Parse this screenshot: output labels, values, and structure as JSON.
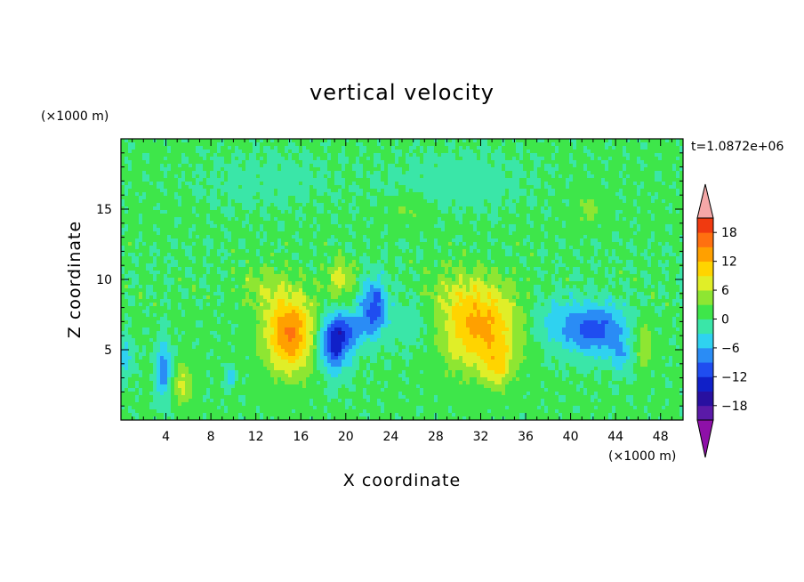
{
  "chart_data": {
    "type": "heatmap",
    "title": "vertical velocity",
    "xlabel": "X coordinate",
    "ylabel": "Z coordinate",
    "x_unit": "(×1000 m)",
    "y_unit": "(×1000 m)",
    "time_label": "t=1.0872e+06",
    "xlim": [
      0,
      50
    ],
    "ylim": [
      0,
      20
    ],
    "x_ticks": [
      4,
      8,
      12,
      16,
      20,
      24,
      28,
      32,
      36,
      40,
      44,
      48
    ],
    "y_ticks": [
      5,
      10,
      15
    ],
    "colorbar": {
      "levels": [
        -21,
        -18,
        -15,
        -12,
        -9,
        -6,
        -3,
        0,
        3,
        6,
        9,
        12,
        15,
        18,
        21
      ],
      "tick_values": [
        -18,
        -12,
        -6,
        0,
        6,
        12,
        18
      ],
      "tick_labels": [
        "−18",
        "−12",
        "−6",
        "0",
        "6",
        "12",
        "18"
      ],
      "colors": [
        "#5a1aa8",
        "#2810a0",
        "#1020c8",
        "#1f4df0",
        "#2a8cf5",
        "#2fd2f0",
        "#3ae6a8",
        "#3ee64a",
        "#8ee632",
        "#e0ee28",
        "#ffd400",
        "#ffa000",
        "#ff7010",
        "#f03a10",
        "#e01010"
      ],
      "under_color": "#8e10a8",
      "over_color": "#f5a8a8"
    },
    "field": {
      "background": 0.5,
      "features": [
        {
          "x": 15,
          "z": 6.2,
          "sx": 2.2,
          "sz": 2.8,
          "amp": 15
        },
        {
          "x": 12.5,
          "z": 9.5,
          "sx": 2.0,
          "sz": 1.5,
          "amp": 4
        },
        {
          "x": 32,
          "z": 6.5,
          "sx": 3.5,
          "sz": 3.0,
          "amp": 12
        },
        {
          "x": 33.5,
          "z": 3.8,
          "sx": 1.2,
          "sz": 1.5,
          "amp": 6
        },
        {
          "x": 30,
          "z": 9,
          "sx": 3.5,
          "sz": 2.0,
          "amp": 3
        },
        {
          "x": 19.5,
          "z": 10,
          "sx": 1.2,
          "sz": 1.4,
          "amp": 7
        },
        {
          "x": 46.5,
          "z": 5.5,
          "sx": 0.8,
          "sz": 1.8,
          "amp": 6
        },
        {
          "x": 5.5,
          "z": 2.5,
          "sx": 1.0,
          "sz": 1.5,
          "amp": 6
        },
        {
          "x": 25.5,
          "z": 15,
          "sx": 1.5,
          "sz": 1.0,
          "amp": 3
        },
        {
          "x": 41.5,
          "z": 15,
          "sx": 1.2,
          "sz": 1.2,
          "amp": 4
        },
        {
          "x": 19,
          "z": 5.5,
          "sx": 1.4,
          "sz": 2.0,
          "amp": -14
        },
        {
          "x": 22.5,
          "z": 8,
          "sx": 1.2,
          "sz": 2.0,
          "amp": -11
        },
        {
          "x": 20.5,
          "z": 6.5,
          "sx": 1.5,
          "sz": 1.2,
          "amp": -6
        },
        {
          "x": 42,
          "z": 6.5,
          "sx": 3.0,
          "sz": 1.8,
          "amp": -11
        },
        {
          "x": 44.5,
          "z": 4.5,
          "sx": 1.0,
          "sz": 1.2,
          "amp": -5
        },
        {
          "x": 3.8,
          "z": 3.5,
          "sx": 0.7,
          "sz": 2.0,
          "amp": -9
        },
        {
          "x": 9.8,
          "z": 3.0,
          "sx": 0.4,
          "sz": 0.6,
          "amp": -7
        },
        {
          "x": 0.4,
          "z": 4.5,
          "sx": 0.7,
          "sz": 1.5,
          "amp": -5
        },
        {
          "x": 26,
          "z": 7,
          "sx": 2.0,
          "sz": 2.0,
          "amp": -3
        },
        {
          "x": 38,
          "z": 7,
          "sx": 2.0,
          "sz": 2.0,
          "amp": -3
        },
        {
          "x": 30,
          "z": 17,
          "sx": 6.0,
          "sz": 2.0,
          "amp": -2
        },
        {
          "x": 13,
          "z": 17,
          "sx": 6.0,
          "sz": 2.0,
          "amp": -1.5
        }
      ]
    }
  }
}
